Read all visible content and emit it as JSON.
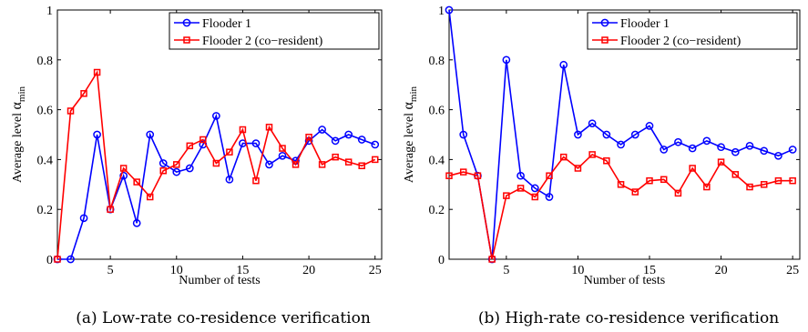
{
  "chart_data": [
    {
      "type": "line",
      "caption": "(a) Low-rate co-residence verification",
      "xlabel": "Number of tests",
      "ylabel_main": "Average level ",
      "ylabel_symbol": "α",
      "ylabel_sub": "min",
      "xlim": [
        1,
        25.5
      ],
      "ylim": [
        0,
        1
      ],
      "xticks": [
        5,
        10,
        15,
        20,
        25
      ],
      "yticks": [
        0,
        0.2,
        0.4,
        0.6,
        0.8,
        1
      ],
      "ytick_labels": [
        "0",
        "0.2",
        "0.4",
        "0.6",
        "0.8",
        "1"
      ],
      "legend_position": "top-right",
      "series": [
        {
          "name": "Flooder 1",
          "color": "#0000ff",
          "marker": "circle",
          "x": [
            1,
            2,
            3,
            4,
            5,
            6,
            7,
            8,
            9,
            10,
            11,
            12,
            13,
            14,
            15,
            16,
            17,
            18,
            19,
            20,
            21,
            22,
            23,
            24,
            25
          ],
          "values": [
            0,
            0,
            0.165,
            0.5,
            0.2,
            0.335,
            0.145,
            0.5,
            0.385,
            0.35,
            0.365,
            0.46,
            0.575,
            0.32,
            0.465,
            0.465,
            0.38,
            0.415,
            0.395,
            0.475,
            0.52,
            0.475,
            0.5,
            0.48,
            0.46
          ]
        },
        {
          "name": "Flooder 2 (co−resident)",
          "color": "#ff0000",
          "marker": "square",
          "x": [
            1,
            2,
            3,
            4,
            5,
            6,
            7,
            8,
            9,
            10,
            11,
            12,
            13,
            14,
            15,
            16,
            17,
            18,
            19,
            20,
            21,
            22,
            23,
            24,
            25
          ],
          "values": [
            0,
            0.595,
            0.665,
            0.75,
            0.2,
            0.365,
            0.31,
            0.25,
            0.355,
            0.38,
            0.455,
            0.48,
            0.385,
            0.43,
            0.52,
            0.315,
            0.53,
            0.445,
            0.38,
            0.49,
            0.38,
            0.41,
            0.39,
            0.375,
            0.4
          ]
        }
      ]
    },
    {
      "type": "line",
      "caption": "(b) High-rate co-residence verification",
      "xlabel": "Number of tests",
      "ylabel_main": "Average level ",
      "ylabel_symbol": "α",
      "ylabel_sub": "min",
      "xlim": [
        1,
        25.5
      ],
      "ylim": [
        0,
        1
      ],
      "xticks": [
        5,
        10,
        15,
        20,
        25
      ],
      "yticks": [
        0,
        0.2,
        0.4,
        0.6,
        0.8,
        1
      ],
      "ytick_labels": [
        "0",
        "0.2",
        "0.4",
        "0.6",
        "0.8",
        "1"
      ],
      "legend_position": "top-right",
      "series": [
        {
          "name": "Flooder 1",
          "color": "#0000ff",
          "marker": "circle",
          "x": [
            1,
            2,
            3,
            4,
            5,
            6,
            7,
            8,
            9,
            10,
            11,
            12,
            13,
            14,
            15,
            16,
            17,
            18,
            19,
            20,
            21,
            22,
            23,
            24,
            25
          ],
          "values": [
            1,
            0.5,
            0.335,
            0,
            0.8,
            0.335,
            0.285,
            0.25,
            0.78,
            0.5,
            0.545,
            0.5,
            0.46,
            0.5,
            0.535,
            0.44,
            0.47,
            0.445,
            0.475,
            0.45,
            0.43,
            0.455,
            0.435,
            0.415,
            0.44
          ]
        },
        {
          "name": "Flooder 2 (co−resident)",
          "color": "#ff0000",
          "marker": "square",
          "x": [
            1,
            2,
            3,
            4,
            5,
            6,
            7,
            8,
            9,
            10,
            11,
            12,
            13,
            14,
            15,
            16,
            17,
            18,
            19,
            20,
            21,
            22,
            23,
            24,
            25
          ],
          "values": [
            0.335,
            0.35,
            0.335,
            0,
            0.255,
            0.285,
            0.25,
            0.335,
            0.41,
            0.365,
            0.42,
            0.395,
            0.3,
            0.27,
            0.315,
            0.32,
            0.265,
            0.365,
            0.29,
            0.39,
            0.34,
            0.29,
            0.3,
            0.315,
            0.315
          ]
        }
      ]
    }
  ]
}
